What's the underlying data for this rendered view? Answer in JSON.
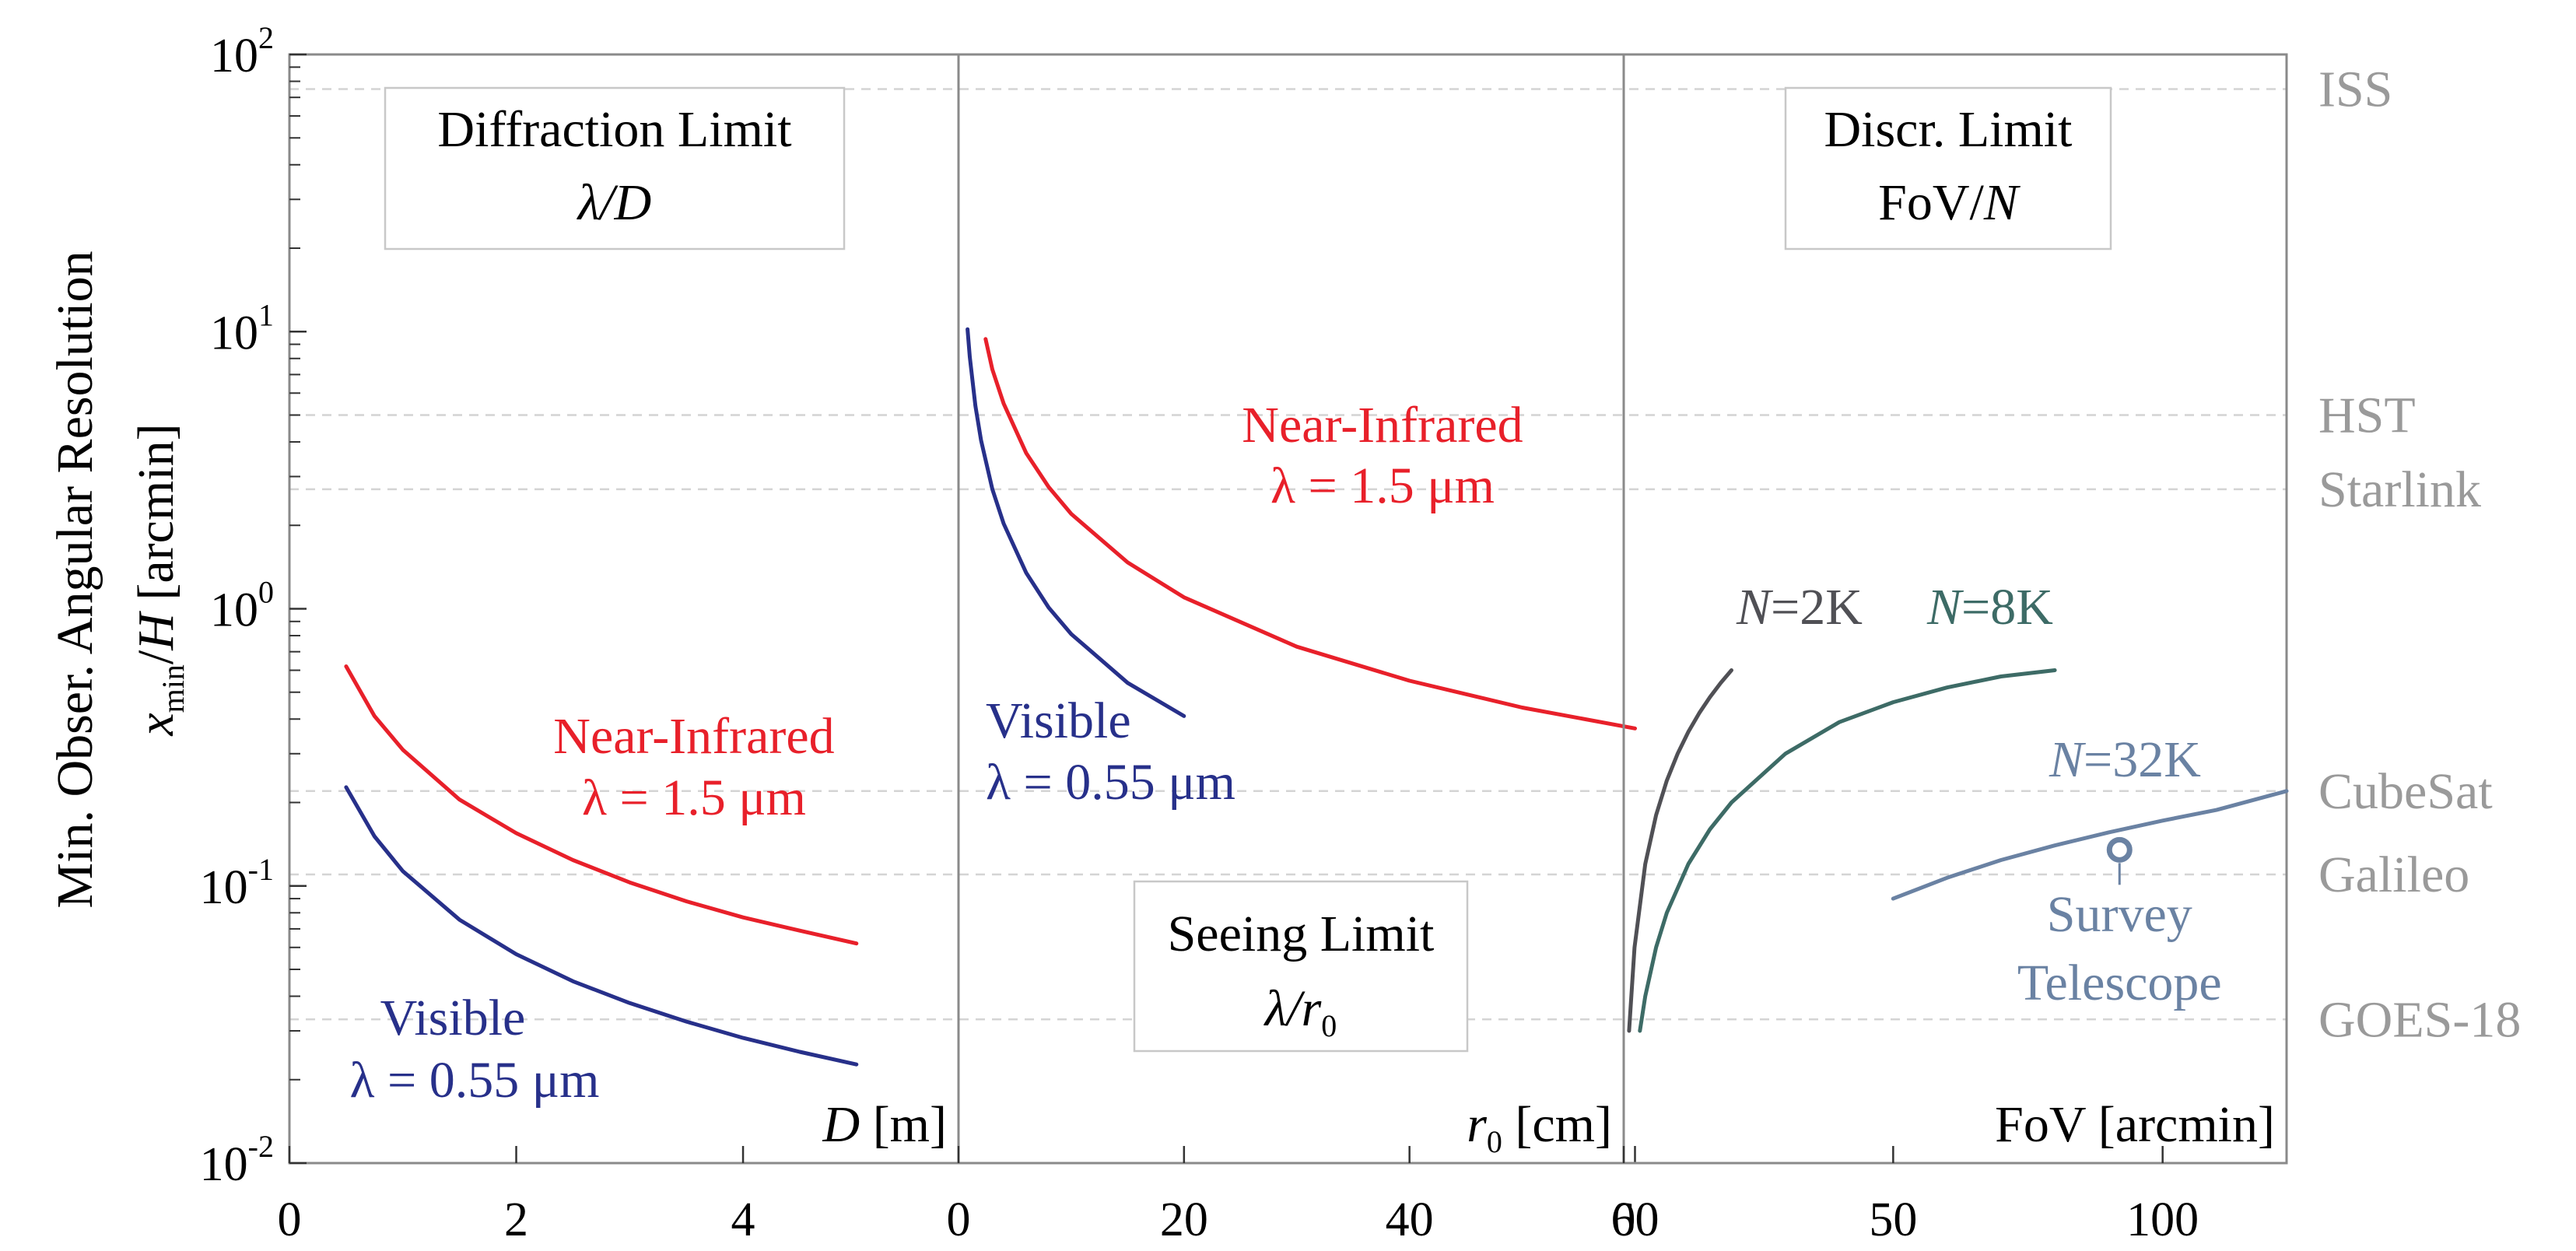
{
  "chart_data": {
    "type": "line",
    "y_axis": {
      "scale": "log",
      "ylim": [
        0.01,
        100
      ],
      "label_line1": "Min. Obser. Angular Resolution",
      "label_var": "x",
      "label_sub": "min",
      "label_rest": "/H [arcmin]",
      "label_H": "H",
      "label_unit": " [arcmin]",
      "slash": "/",
      "tick_base": "10",
      "ticks": [
        {
          "value": 0.01,
          "exp": "-2"
        },
        {
          "value": 0.1,
          "exp": "-1"
        },
        {
          "value": 1,
          "exp": "0"
        },
        {
          "value": 10,
          "exp": "1"
        },
        {
          "value": 100,
          "exp": "2"
        }
      ]
    },
    "panels": [
      {
        "id": "diffraction",
        "title_line1": "Diffraction Limit",
        "title_line2": "λ/D",
        "xlabel_var": "D",
        "xlabel_unit": " [m]",
        "xlim": [
          0,
          5.9
        ],
        "xticks": [
          0,
          2,
          4
        ],
        "series": [
          {
            "name": "Near-Infrared",
            "color": "#e8202a",
            "x": [
              0.5,
              0.75,
              1,
              1.5,
              2,
              2.5,
              3,
              3.5,
              4,
              4.5,
              5
            ],
            "y": [
              0.62,
              0.41,
              0.31,
              0.205,
              0.155,
              0.124,
              0.103,
              0.088,
              0.077,
              0.069,
              0.062
            ]
          },
          {
            "name": "Visible",
            "color": "#27308a",
            "x": [
              0.5,
              0.75,
              1,
              1.5,
              2,
              2.5,
              3,
              3.5,
              4,
              4.5,
              5
            ],
            "y": [
              0.227,
              0.151,
              0.113,
              0.0755,
              0.0567,
              0.0453,
              0.0378,
              0.0324,
              0.0283,
              0.0252,
              0.0227
            ]
          }
        ],
        "annotations": [
          {
            "line1": "Near-Infrared",
            "line2": "λ = 1.5 μm",
            "color": "#e8202a"
          },
          {
            "line1": "Visible",
            "line2": "λ = 0.55 μm",
            "color": "#27308a"
          }
        ]
      },
      {
        "id": "seeing",
        "title_line1": "Seeing Limit",
        "title_line2_var": "λ/r",
        "title_line2_sub": "0",
        "xlabel_var": "r",
        "xlabel_sub": "0",
        "xlabel_unit": " [cm]",
        "xlim": [
          0,
          59
        ],
        "xticks": [
          0,
          20,
          40,
          60
        ],
        "series": [
          {
            "name": "Near-Infrared",
            "color": "#e8202a",
            "x": [
              2.4,
              3,
              4,
              6,
              8,
              10,
              15,
              20,
              30,
              40,
              50,
              60
            ],
            "y": [
              9.4,
              7.3,
              5.5,
              3.65,
              2.75,
              2.2,
              1.47,
              1.1,
              0.73,
              0.55,
              0.44,
              0.37
            ]
          },
          {
            "name": "Visible",
            "color": "#27308a",
            "x": [
              0.8,
              1,
              1.5,
              2,
              3,
              4,
              6,
              8,
              10,
              15,
              20
            ],
            "y": [
              10.2,
              8.1,
              5.4,
              4.05,
              2.7,
              2.03,
              1.35,
              1.01,
              0.81,
              0.54,
              0.41
            ]
          }
        ],
        "annotations": [
          {
            "line1": "Near-Infrared",
            "line2": "λ = 1.5 μm",
            "color": "#e8202a"
          },
          {
            "line1": "Visible",
            "line2": "λ = 0.55 μm",
            "color": "#27308a"
          }
        ]
      },
      {
        "id": "discretization",
        "title_line1": "Discr. Limit",
        "title_line2": "FoV/N",
        "title_line2_pre": "FoV/",
        "title_line2_var": "N",
        "xlabel": "FoV [arcmin]",
        "xlim": [
          0,
          123
        ],
        "xticks": [
          0,
          50,
          100
        ],
        "series": [
          {
            "name": "N=2K",
            "label_var": "N",
            "label_rest": "=2K",
            "color": "#505055",
            "x": [
              1,
              2,
              4,
              6,
              8,
              10,
              12,
              14,
              16,
              18,
              20
            ],
            "y": [
              0.03,
              0.06,
              0.12,
              0.18,
              0.24,
              0.3,
              0.36,
              0.42,
              0.48,
              0.54,
              0.6
            ]
          },
          {
            "name": "N=8K",
            "label_var": "N",
            "label_rest": "=8K",
            "color": "#3d6b66",
            "x": [
              3,
              4,
              6,
              8,
              12,
              16,
              20,
              30,
              40,
              50,
              60,
              70,
              80
            ],
            "y": [
              0.03,
              0.04,
              0.06,
              0.08,
              0.12,
              0.16,
              0.2,
              0.3,
              0.39,
              0.46,
              0.52,
              0.57,
              0.6
            ]
          },
          {
            "name": "N=32K",
            "label_var": "N",
            "label_rest": "=32K",
            "color": "#6a82a3",
            "x": [
              50,
              60,
              70,
              80,
              90,
              100,
              110,
              123
            ],
            "y": [
              0.09,
              0.107,
              0.124,
              0.14,
              0.156,
              0.172,
              0.188,
              0.22
            ]
          }
        ],
        "point": {
          "label_line1": "Survey",
          "label_line2": "Telescope",
          "x": 92,
          "y": 0.135,
          "color": "#6a82a3"
        }
      }
    ],
    "reference_lines": [
      {
        "label": "ISS",
        "y": 75
      },
      {
        "label": "HST",
        "y": 5
      },
      {
        "label": "Starlink",
        "y": 2.7
      },
      {
        "label": "CubeSat",
        "y": 0.22
      },
      {
        "label": "Galileo",
        "y": 0.11
      },
      {
        "label": "GOES-18",
        "y": 0.033
      }
    ]
  }
}
